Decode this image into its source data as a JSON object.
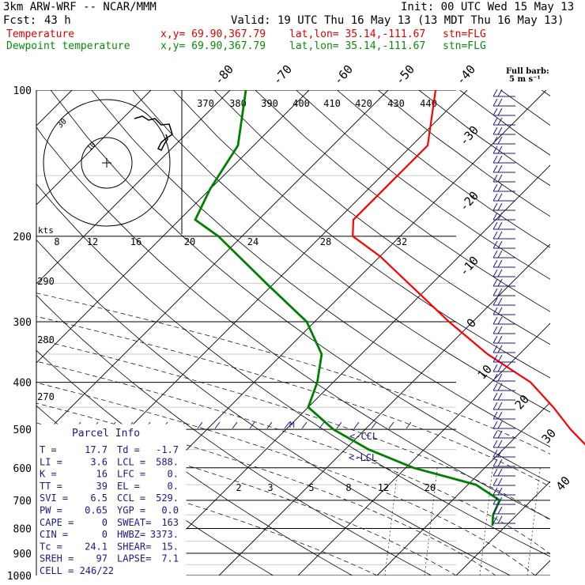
{
  "header": {
    "model": "3km ARW-WRF -- NCAR/MMM",
    "init": "Init: 00 UTC Wed 15 May 13",
    "fcst_label": "Fcst:",
    "fcst_hours": "43 h",
    "valid": "Valid: 19 UTC Thu 16 May 13 (13 MDT Thu 16 May 13)",
    "temp_label": "Temperature",
    "dew_label": "Dewpoint temperature",
    "xy": "x,y= 69.90,367.79",
    "latlon": "lat,lon= 35.14,-111.67",
    "stn": "stn=FLG"
  },
  "barb_header": {
    "line1": "Full barb:",
    "line2": "5 m s⁻¹"
  },
  "parcel": {
    "title": "Parcel Info",
    "rows": [
      [
        "T  =",
        "17.7",
        "Td =",
        "-1.7"
      ],
      [
        "LI =",
        "3.6",
        "LCL =",
        "588."
      ],
      [
        "K  =",
        "16",
        "LFC =",
        "0."
      ],
      [
        "TT =",
        "39",
        "EL  =",
        "0."
      ],
      [
        "SVI =",
        "6.5",
        "CCL =",
        "529."
      ],
      [
        "PW =",
        "0.65",
        "YGP =",
        "0.0"
      ],
      [
        "CAPE =",
        "0",
        "SWEAT=",
        "163"
      ],
      [
        "CIN =",
        "0",
        "HWBZ=",
        "3373."
      ],
      [
        "Tc =",
        "24.1",
        "SHEAR=",
        "15."
      ],
      [
        "SREH =",
        "97",
        "LAPSE=",
        "7.1"
      ]
    ],
    "cell": "CELL = 246/22"
  },
  "hodograph": {
    "kts_label": "kts",
    "ring_label": "30",
    "ring_label_inner": "10"
  },
  "chart_data": {
    "type": "line",
    "title": "",
    "ylabel": "",
    "xlabel": "",
    "pressure_ticks": [
      100,
      200,
      300,
      400,
      500,
      600,
      700,
      800,
      900,
      1000
    ],
    "temp_ticks": [
      -80,
      -70,
      -60,
      -50,
      -40,
      -30,
      -20,
      -10,
      0,
      10,
      20,
      30,
      40
    ],
    "theta_labels": [
      "370",
      "380",
      "390",
      "400",
      "410",
      "420",
      "430",
      "440"
    ],
    "hodo_speed_labels": [
      "8",
      "12",
      "16",
      "20",
      "24",
      "28",
      "32"
    ],
    "mixing_ratio_labels": [
      "2",
      "3",
      "5",
      "8",
      "12",
      "20"
    ],
    "theta_left_labels": [
      "290",
      "280",
      "270"
    ],
    "annotations": [
      "<-CCL",
      "<-LCL",
      "M"
    ],
    "series": [
      {
        "name": "Temperature",
        "color": "#ff0000",
        "points": [
          [
            100,
            -64
          ],
          [
            130,
            -58
          ],
          [
            160,
            -58
          ],
          [
            185,
            -58
          ],
          [
            200,
            -56
          ],
          [
            220,
            -50
          ],
          [
            250,
            -43
          ],
          [
            300,
            -33
          ],
          [
            350,
            -24
          ],
          [
            400,
            -15
          ],
          [
            450,
            -9
          ],
          [
            500,
            -4
          ],
          [
            550,
            1
          ],
          [
            600,
            5
          ],
          [
            650,
            8
          ],
          [
            700,
            12
          ],
          [
            750,
            15
          ],
          [
            790,
            17.7
          ]
        ]
      },
      {
        "name": "Dewpoint temperature",
        "color": "#008000",
        "points": [
          [
            100,
            -88
          ],
          [
            130,
            -82
          ],
          [
            160,
            -80
          ],
          [
            185,
            -78
          ],
          [
            200,
            -73
          ],
          [
            250,
            -61
          ],
          [
            300,
            -51
          ],
          [
            350,
            -45
          ],
          [
            400,
            -42
          ],
          [
            450,
            -40
          ],
          [
            500,
            -34
          ],
          [
            550,
            -27
          ],
          [
            600,
            -19
          ],
          [
            650,
            -9
          ],
          [
            700,
            -4
          ],
          [
            750,
            -3
          ],
          [
            790,
            -1.7
          ]
        ]
      }
    ],
    "grid": true,
    "legend_placement": "top-left"
  },
  "colors": {
    "temperature": "#ff0000",
    "dewpoint": "#0a8a0a",
    "parcel_text": "#1a1a8a",
    "wind": "#1a1a8a"
  }
}
